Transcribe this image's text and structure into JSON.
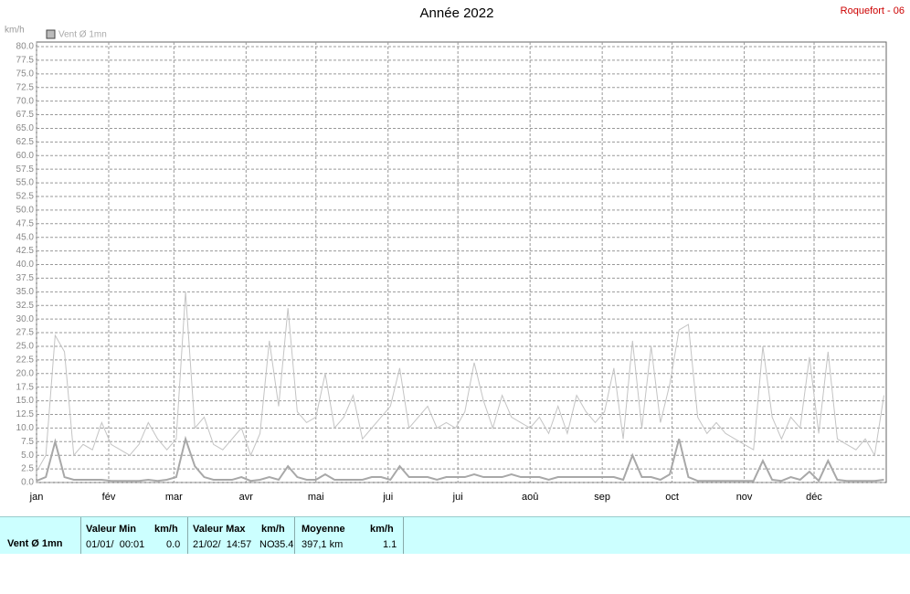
{
  "chart_data": {
    "type": "line",
    "title": "Année 2022",
    "station": "Roquefort - 06",
    "y_label": "km/h",
    "x": [
      0,
      4,
      8,
      12,
      16,
      20,
      24,
      28,
      32,
      36,
      40,
      44,
      48,
      52,
      56,
      60,
      64,
      68,
      72,
      76,
      80,
      84,
      88,
      92,
      96,
      100,
      104,
      108,
      112,
      116,
      120,
      124,
      128,
      132,
      136,
      140,
      144,
      148,
      152,
      156,
      160,
      164,
      168,
      172,
      176,
      180,
      184,
      188,
      192,
      196,
      200,
      204,
      208,
      212,
      216,
      220,
      224,
      228,
      232,
      236,
      240,
      244,
      248,
      252,
      256,
      260,
      264,
      268,
      272,
      276,
      280,
      284,
      288,
      292,
      296,
      300,
      304,
      308,
      312,
      316,
      320,
      324,
      328,
      332,
      336,
      340,
      344,
      348,
      352,
      356,
      360,
      364
    ],
    "series": [
      {
        "name": "Vent Ø 1mn",
        "color": "#c4c4c4",
        "values": [
          2,
          5,
          27,
          24,
          5,
          7,
          6,
          11,
          7,
          6,
          5,
          7,
          11,
          8,
          6,
          8,
          35,
          10,
          12,
          7,
          6,
          8,
          10,
          5,
          9,
          26,
          14,
          32,
          13,
          11,
          12,
          20,
          10,
          12,
          16,
          8,
          10,
          12,
          14,
          21,
          10,
          12,
          14,
          10,
          11,
          10,
          13,
          22,
          15,
          10,
          16,
          12,
          11,
          10,
          12,
          9,
          14,
          9,
          16,
          13,
          11,
          13,
          21,
          8,
          26,
          10,
          25,
          11,
          18,
          28,
          29,
          12,
          9,
          11,
          9,
          8,
          7,
          6,
          25,
          12,
          8,
          12,
          10,
          23,
          9,
          24,
          8,
          7,
          6,
          8,
          5,
          16
        ]
      },
      {
        "color": "#a8a8a8",
        "values": [
          0.3,
          1,
          7.5,
          1,
          0.5,
          0.5,
          0.5,
          0.5,
          0.3,
          0.3,
          0.3,
          0.3,
          0.5,
          0.3,
          0.5,
          1,
          8,
          3,
          1,
          0.5,
          0.5,
          0.5,
          1,
          0.3,
          0.5,
          1,
          0.5,
          3,
          1,
          0.5,
          0.5,
          1.5,
          0.5,
          0.5,
          0.5,
          0.5,
          1,
          1,
          0.5,
          3,
          1,
          1,
          1,
          0.5,
          1,
          1,
          1,
          1.5,
          1,
          1,
          1,
          1.5,
          1,
          1,
          1,
          0.5,
          1,
          1,
          1,
          1,
          1,
          1,
          1,
          0.5,
          5,
          1,
          1,
          0.5,
          1.5,
          8,
          1,
          0.3,
          0.3,
          0.3,
          0.3,
          0.3,
          0.3,
          0.3,
          4,
          0.5,
          0.3,
          1,
          0.5,
          2,
          0.3,
          4,
          0.5,
          0.3,
          0.3,
          0.3,
          0.3,
          0.5
        ]
      }
    ],
    "xlim": [
      0,
      365
    ],
    "xticks": [
      {
        "value": 0,
        "label": "jan"
      },
      {
        "value": 31,
        "label": "fév"
      },
      {
        "value": 59,
        "label": "mar"
      },
      {
        "value": 90,
        "label": "avr"
      },
      {
        "value": 120,
        "label": "mai"
      },
      {
        "value": 151,
        "label": "jui"
      },
      {
        "value": 181,
        "label": "jui"
      },
      {
        "value": 212,
        "label": "aoû"
      },
      {
        "value": 243,
        "label": "sep"
      },
      {
        "value": 273,
        "label": "oct"
      },
      {
        "value": 304,
        "label": "nov"
      },
      {
        "value": 334,
        "label": "déc"
      }
    ],
    "ylim": [
      0,
      80
    ],
    "yticks": [
      {
        "value": 0,
        "label": "0.0"
      },
      2.5,
      {
        "value": 5,
        "label": "5.0"
      },
      7.5,
      {
        "value": 10,
        "label": "10.0"
      },
      12.5,
      {
        "value": 15,
        "label": "15.0"
      },
      17.5,
      {
        "value": 20,
        "label": "20.0"
      },
      22.5,
      {
        "value": 25,
        "label": "25.0"
      },
      27.5,
      {
        "value": 30,
        "label": "30.0"
      },
      32.5,
      {
        "value": 35,
        "label": "35.0"
      },
      37.5,
      {
        "value": 40,
        "label": "40.0"
      },
      42.5,
      {
        "value": 45,
        "label": "45.0"
      },
      47.5,
      {
        "value": 50,
        "label": "50.0"
      },
      52.5,
      {
        "value": 55,
        "label": "55.0"
      },
      57.5,
      {
        "value": 60,
        "label": "60.0"
      },
      62.5,
      {
        "value": 65,
        "label": "65.0"
      },
      67.5,
      {
        "value": 70,
        "label": "70.0"
      },
      72.5,
      {
        "value": 75,
        "label": "75.0"
      },
      77.5,
      {
        "value": 80,
        "label": "80.0"
      }
    ],
    "grid": true
  },
  "footer": {
    "label": "Vent Ø 1mn",
    "min": {
      "title": "Valeur Min",
      "unit": "km/h",
      "date": "01/01/  00:01",
      "value": "0.0"
    },
    "max": {
      "title": "Valeur Max",
      "unit": "km/h",
      "date": "21/02/  14:57",
      "dir": "NO",
      "value": "35.4"
    },
    "mean": {
      "title": "Moyenne",
      "unit": "km/h",
      "distance": "397,1 km",
      "value": "1.1"
    }
  }
}
